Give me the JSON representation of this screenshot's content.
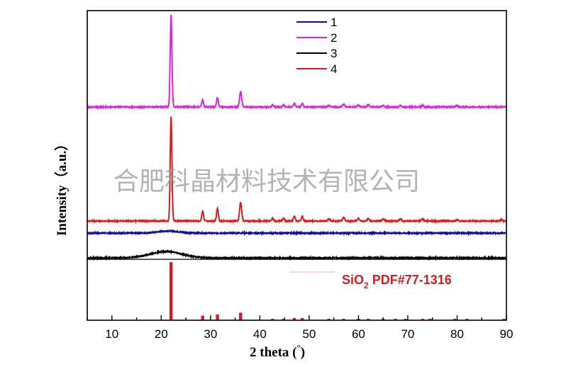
{
  "chart_data": {
    "type": "line",
    "xlabel": "2 theta (°)",
    "xlabel_main": "2 theta (",
    "xlabel_unit": "°",
    "xlabel_close": ")",
    "ylabel": "Intensity（a.u.）",
    "xlim": [
      5,
      90
    ],
    "xticks": [
      10,
      20,
      30,
      40,
      50,
      60,
      70,
      80,
      90
    ],
    "y_ticks_shown": false,
    "grid": false,
    "legend_placement": "top-center",
    "series": [
      {
        "name": "1",
        "color": "#0a0aa8",
        "baseline": 35,
        "peaks": [
          {
            "x": 21.5,
            "h": 3,
            "w": 3.0
          }
        ]
      },
      {
        "name": "2",
        "color": "#e020e0",
        "baseline": 213,
        "peaks": [
          {
            "x": 22.0,
            "h": 130,
            "w": 0.25
          },
          {
            "x": 28.4,
            "h": 10,
            "w": 0.25
          },
          {
            "x": 31.4,
            "h": 13,
            "w": 0.25
          },
          {
            "x": 36.1,
            "h": 21,
            "w": 0.3
          },
          {
            "x": 42.6,
            "h": 3,
            "w": 0.25
          },
          {
            "x": 44.8,
            "h": 3,
            "w": 0.25
          },
          {
            "x": 47.0,
            "h": 5,
            "w": 0.25
          },
          {
            "x": 48.6,
            "h": 5,
            "w": 0.25
          },
          {
            "x": 54.0,
            "h": 2,
            "w": 0.3
          },
          {
            "x": 57.0,
            "h": 4,
            "w": 0.3
          },
          {
            "x": 60.0,
            "h": 3,
            "w": 0.3
          },
          {
            "x": 62.0,
            "h": 3,
            "w": 0.3
          },
          {
            "x": 65.0,
            "h": 2,
            "w": 0.3
          },
          {
            "x": 68.5,
            "h": 2,
            "w": 0.3
          },
          {
            "x": 73.0,
            "h": 2,
            "w": 0.3
          },
          {
            "x": 80.0,
            "h": 2,
            "w": 0.3
          }
        ]
      },
      {
        "name": "3",
        "color": "#000000",
        "baseline": 0,
        "peaks": [
          {
            "x": 21.0,
            "h": 9,
            "w": 4.5
          }
        ]
      },
      {
        "name": "4",
        "color": "#e01818",
        "baseline": 52,
        "peaks": [
          {
            "x": 22.0,
            "h": 148,
            "w": 0.25
          },
          {
            "x": 28.4,
            "h": 14,
            "w": 0.25
          },
          {
            "x": 31.4,
            "h": 18,
            "w": 0.25
          },
          {
            "x": 36.1,
            "h": 26,
            "w": 0.3
          },
          {
            "x": 42.6,
            "h": 4,
            "w": 0.25
          },
          {
            "x": 44.8,
            "h": 4,
            "w": 0.25
          },
          {
            "x": 47.0,
            "h": 7,
            "w": 0.25
          },
          {
            "x": 48.6,
            "h": 7,
            "w": 0.25
          },
          {
            "x": 54.0,
            "h": 3,
            "w": 0.3
          },
          {
            "x": 57.0,
            "h": 5,
            "w": 0.3
          },
          {
            "x": 60.0,
            "h": 4,
            "w": 0.3
          },
          {
            "x": 62.0,
            "h": 3,
            "w": 0.3
          },
          {
            "x": 65.0,
            "h": 3,
            "w": 0.3
          },
          {
            "x": 68.5,
            "h": 3,
            "w": 0.3
          },
          {
            "x": 73.0,
            "h": 3,
            "w": 0.3
          },
          {
            "x": 80.0,
            "h": 2,
            "w": 0.3
          },
          {
            "x": 89.0,
            "h": 2,
            "w": 0.3
          }
        ]
      }
    ],
    "reference": {
      "label_main": "SiO",
      "label_sub": "2",
      "label_rest": " PDF#77-1316",
      "color": "#d81c1c",
      "sticks": [
        {
          "x": 22.0,
          "i": 100
        },
        {
          "x": 28.4,
          "i": 8
        },
        {
          "x": 31.4,
          "i": 10
        },
        {
          "x": 36.1,
          "i": 13
        },
        {
          "x": 42.6,
          "i": 2
        },
        {
          "x": 44.8,
          "i": 2
        },
        {
          "x": 47.0,
          "i": 4
        },
        {
          "x": 48.6,
          "i": 4
        },
        {
          "x": 54.0,
          "i": 1
        },
        {
          "x": 57.0,
          "i": 2
        },
        {
          "x": 60.0,
          "i": 1
        },
        {
          "x": 62.0,
          "i": 2
        },
        {
          "x": 65.0,
          "i": 1
        },
        {
          "x": 67.5,
          "i": 1
        },
        {
          "x": 69.5,
          "i": 1
        },
        {
          "x": 73.0,
          "i": 1
        },
        {
          "x": 74.5,
          "i": 1
        },
        {
          "x": 79.5,
          "i": 1
        },
        {
          "x": 82.0,
          "i": 1
        },
        {
          "x": 89.5,
          "i": 1
        }
      ]
    },
    "watermark": "合肥科晶材料技术有限公司"
  }
}
